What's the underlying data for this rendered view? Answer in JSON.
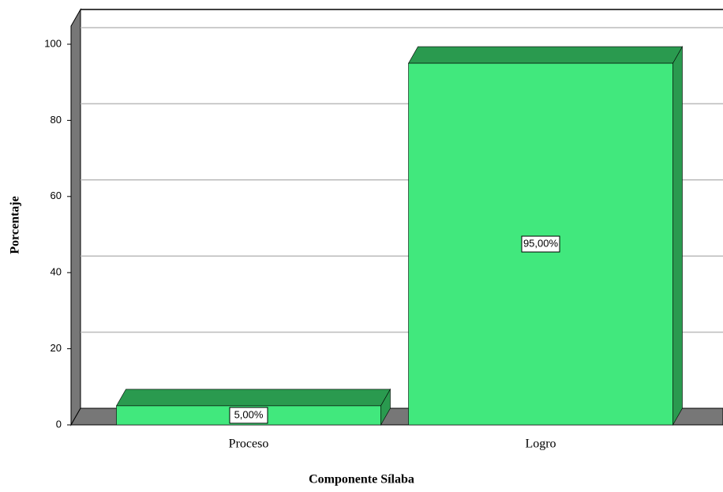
{
  "chart_data": {
    "type": "bar3d",
    "x_label": "Componente Sílaba",
    "y_label": "Porcentaje",
    "categories": [
      "Proceso",
      "Logro"
    ],
    "values": [
      5,
      95
    ],
    "value_labels": [
      "5,00%",
      "95,00%"
    ],
    "color": "#41e87d",
    "side_color": "#2a9a4f",
    "ylim": [
      0,
      100
    ],
    "yticks": [
      0,
      20,
      40,
      60,
      80,
      100
    ],
    "grid": true
  }
}
